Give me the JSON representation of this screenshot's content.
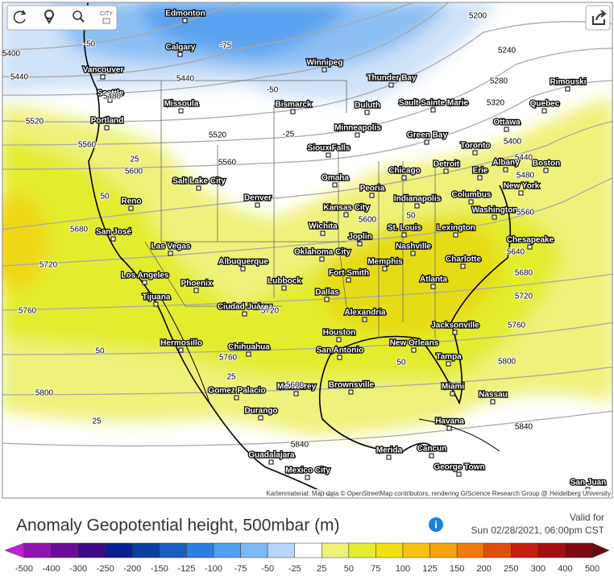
{
  "toolbar": {
    "city_button": "CITY"
  },
  "map": {
    "attribution": "Kartenmaterial: Map data © OpenStreetMap contributors, rendering GIScience Research Group @ Heidelberg University",
    "cities": [
      "Edmonton",
      "Calgary",
      "Vancouver",
      "Seattle",
      "Portland",
      "Missoula",
      "Winnipeg",
      "Thunder Bay",
      "Sault Sainte Marie",
      "Rimouski",
      "Quebec",
      "Ottawa",
      "Duluth",
      "Bismarck",
      "Minneapolis",
      "Green Bay",
      "Toronto",
      "Sioux Falls",
      "Detroit",
      "Albany",
      "Boston",
      "Chicago",
      "Erie",
      "New York",
      "Salt Lake City",
      "Omaha",
      "Peoria",
      "Indianapolis",
      "Columbus",
      "Denver",
      "Reno",
      "Kansas City",
      "Washington",
      "Wichita",
      "St. Louis",
      "Lexington",
      "Joplin",
      "Chesapeake",
      "San José",
      "Las Vegas",
      "Nashville",
      "Oklahoma City",
      "Albuquerque",
      "Memphis",
      "Charlotte",
      "Fort Smith",
      "Los Angeles",
      "Phoenix",
      "Lubbock",
      "Atlanta",
      "Dallas",
      "Tijuana",
      "Ciudad Juárez",
      "Alexandria",
      "Jacksonville",
      "Houston",
      "San Antonio",
      "New Orleans",
      "Hermosillo",
      "Chihuahua",
      "Tampa",
      "Brownsville",
      "Miami",
      "Monterrey",
      "Gomez Palacio",
      "Nassau",
      "Durango",
      "Havana",
      "Merida",
      "Cancun",
      "Guadalajara",
      "George Town",
      "Mexico City",
      "San Juan"
    ],
    "contour_labels": [
      "5400",
      "5440",
      "5480",
      "5520",
      "5560",
      "5600",
      "5680",
      "5720",
      "5760",
      "5800",
      "5600",
      "5200",
      "5240",
      "5280",
      "5320",
      "5400",
      "5440",
      "5480",
      "5560",
      "5640",
      "5680",
      "5720",
      "5760",
      "5800",
      "5840",
      "5440",
      "5520",
      "5560",
      "5600",
      "5720",
      "5760",
      "5840",
      "-50",
      "-75",
      "-50",
      "-25",
      "25",
      "50",
      "50",
      "25",
      "50",
      "50",
      "25"
    ]
  },
  "footer": {
    "title": "Anomaly Geopotential height, 500mbar (m)",
    "valid_label": "Valid for",
    "valid_time": "Sun 02/28/2021, 06:00pm CST"
  },
  "legend": {
    "ticks": [
      -500,
      -400,
      -300,
      -250,
      -200,
      -150,
      -125,
      -100,
      -75,
      -50,
      -25,
      25,
      50,
      75,
      100,
      125,
      150,
      200,
      250,
      300,
      400,
      500
    ],
    "colors": [
      "#c21ed6",
      "#8e14b0",
      "#6a0d96",
      "#3c0a87",
      "#0a1f8f",
      "#0b3fa3",
      "#1a5fc0",
      "#2b7fde",
      "#4f9ff2",
      "#7db8f5",
      "#b5d6f8",
      "#ffffff",
      "#eef27a",
      "#e4ec2e",
      "#f2df12",
      "#f5c20d",
      "#f5a20b",
      "#ef7a0b",
      "#e04e0c",
      "#c81e0e",
      "#a50f12",
      "#7d0a10",
      "#6a0a0e"
    ]
  }
}
